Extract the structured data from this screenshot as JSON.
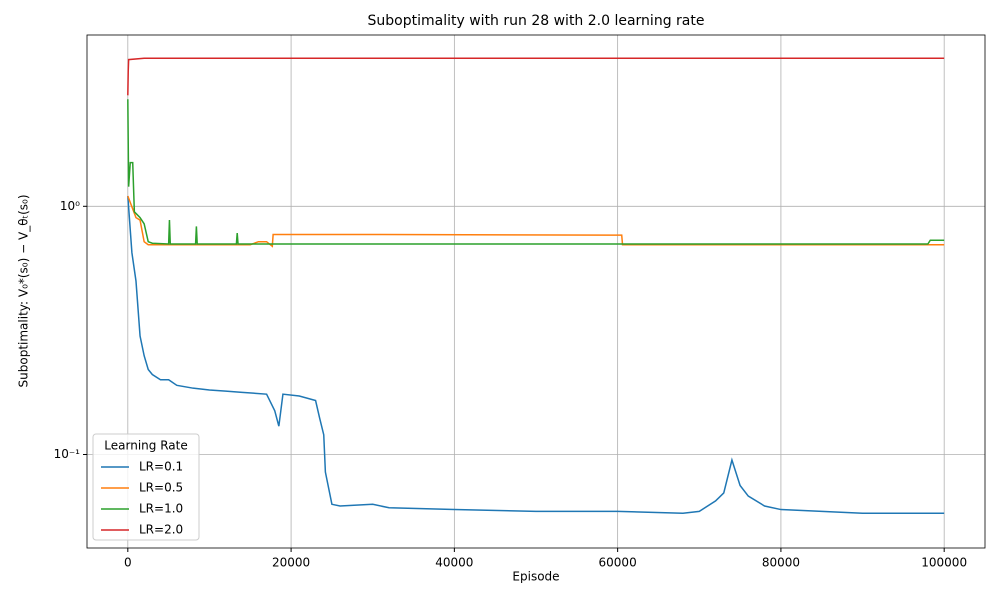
{
  "chart_data": {
    "type": "line",
    "title": "Suboptimality with run 28 with 2.0 learning rate",
    "xlabel": "Episode",
    "ylabel": "Suboptimality: V₀*(s₀) − V_θₜ(s₀)",
    "xlim": [
      -5000,
      105000
    ],
    "ylim": [
      0.042,
      4.9
    ],
    "yscale": "log",
    "xticks": [
      0,
      20000,
      40000,
      60000,
      80000,
      100000
    ],
    "yticks": [
      {
        "value": 0.1,
        "label": "10⁻¹"
      },
      {
        "value": 1,
        "label": "10⁰"
      }
    ],
    "grid": true,
    "legend_title": "Learning Rate",
    "legend_loc": "lower left",
    "series": [
      {
        "name": "LR=0.1",
        "color": "#1f77b4",
        "x": [
          0,
          500,
          1000,
          1500,
          2000,
          2500,
          3000,
          4000,
          5000,
          6000,
          8000,
          10000,
          12000,
          14000,
          17000,
          18000,
          18500,
          19000,
          21000,
          23000,
          23500,
          24000,
          24200,
          25000,
          26000,
          30000,
          32000,
          40000,
          50000,
          60000,
          68000,
          70000,
          72000,
          73000,
          74000,
          75000,
          76000,
          78000,
          80000,
          85000,
          90000,
          100000
        ],
        "values": [
          1.1,
          0.65,
          0.5,
          0.3,
          0.25,
          0.22,
          0.21,
          0.2,
          0.2,
          0.19,
          0.185,
          0.182,
          0.18,
          0.178,
          0.175,
          0.15,
          0.13,
          0.175,
          0.172,
          0.165,
          0.14,
          0.12,
          0.085,
          0.063,
          0.062,
          0.063,
          0.061,
          0.06,
          0.059,
          0.059,
          0.058,
          0.059,
          0.065,
          0.07,
          0.095,
          0.075,
          0.068,
          0.062,
          0.06,
          0.059,
          0.058,
          0.058
        ]
      },
      {
        "name": "LR=0.5",
        "color": "#ff7f0e",
        "x": [
          0,
          1000,
          1500,
          2000,
          2500,
          5000,
          15000,
          16000,
          17000,
          17700,
          17800,
          30000,
          59000,
          60500,
          60600,
          100000
        ],
        "values": [
          1.1,
          0.9,
          0.88,
          0.72,
          0.7,
          0.7,
          0.7,
          0.72,
          0.72,
          0.69,
          0.77,
          0.77,
          0.765,
          0.765,
          0.7,
          0.7
        ]
      },
      {
        "name": "LR=1.0",
        "color": "#2ca02c",
        "x": [
          0,
          100,
          300,
          600,
          800,
          1500,
          2000,
          2500,
          3000,
          5000,
          5100,
          5200,
          8300,
          8400,
          8500,
          13300,
          13400,
          13500,
          98000,
          98300,
          100000
        ],
        "values": [
          2.7,
          1.2,
          1.5,
          1.5,
          0.95,
          0.9,
          0.85,
          0.72,
          0.71,
          0.705,
          0.88,
          0.705,
          0.705,
          0.83,
          0.705,
          0.705,
          0.78,
          0.705,
          0.705,
          0.73,
          0.73
        ]
      },
      {
        "name": "LR=2.0",
        "color": "#d62728",
        "x": [
          0,
          50,
          100,
          2000,
          100000
        ],
        "values": [
          2.8,
          3.5,
          3.9,
          3.95,
          3.95
        ]
      }
    ]
  }
}
